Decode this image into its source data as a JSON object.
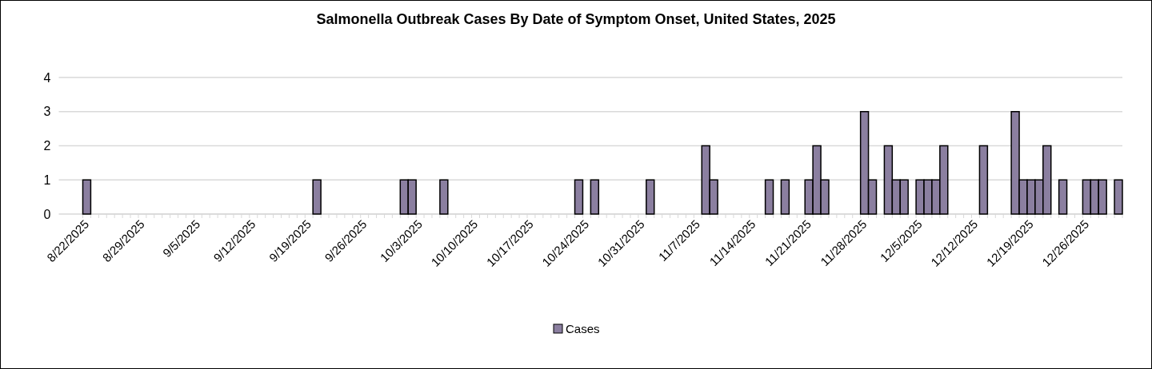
{
  "chart_data": {
    "type": "bar",
    "title": "Salmonella Outbreak Cases By Date of Symptom Onset, United States, 2025",
    "categories": [
      "8/22/2025",
      null,
      null,
      null,
      null,
      null,
      null,
      "8/29/2025",
      null,
      null,
      null,
      null,
      null,
      null,
      "9/5/2025",
      null,
      null,
      null,
      null,
      null,
      null,
      "9/12/2025",
      null,
      null,
      null,
      null,
      null,
      null,
      "9/19/2025",
      null,
      null,
      null,
      null,
      null,
      null,
      "9/26/2025",
      null,
      null,
      null,
      null,
      null,
      null,
      "10/3/2025",
      null,
      null,
      null,
      null,
      null,
      null,
      "10/10/2025",
      null,
      null,
      null,
      null,
      null,
      null,
      "10/17/2025",
      null,
      null,
      null,
      null,
      null,
      null,
      "10/24/2025",
      null,
      null,
      null,
      null,
      null,
      null,
      "10/31/2025",
      null,
      null,
      null,
      null,
      null,
      null,
      "11/7/2025",
      null,
      null,
      null,
      null,
      null,
      null,
      "11/14/2025",
      null,
      null,
      null,
      null,
      null,
      null,
      "11/21/2025",
      null,
      null,
      null,
      null,
      null,
      null,
      "11/28/2025",
      null,
      null,
      null,
      null,
      null,
      null,
      "12/5/2025",
      null,
      null,
      null,
      null,
      null,
      null,
      "12/12/2025",
      null,
      null,
      null,
      null,
      null,
      null,
      "12/19/2025",
      null,
      null,
      null,
      null,
      null,
      null,
      "12/26/2025",
      null,
      null,
      null,
      null
    ],
    "series": [
      {
        "name": "Cases",
        "color": "#8b7fa0",
        "values": [
          1,
          null,
          null,
          null,
          null,
          null,
          null,
          null,
          null,
          null,
          null,
          null,
          null,
          null,
          null,
          null,
          null,
          null,
          null,
          null,
          null,
          null,
          null,
          null,
          null,
          null,
          null,
          null,
          null,
          1,
          null,
          null,
          null,
          null,
          null,
          null,
          null,
          null,
          null,
          null,
          1,
          1,
          null,
          null,
          null,
          1,
          null,
          null,
          null,
          null,
          null,
          null,
          null,
          null,
          null,
          null,
          null,
          null,
          null,
          null,
          null,
          null,
          1,
          null,
          1,
          null,
          null,
          null,
          null,
          null,
          null,
          1,
          null,
          null,
          null,
          null,
          null,
          null,
          2,
          1,
          null,
          null,
          null,
          null,
          null,
          null,
          1,
          null,
          1,
          null,
          null,
          1,
          2,
          1,
          null,
          null,
          null,
          null,
          3,
          1,
          null,
          2,
          1,
          1,
          null,
          1,
          1,
          1,
          2,
          null,
          null,
          null,
          null,
          2,
          null,
          null,
          null,
          3,
          1,
          1,
          1,
          2,
          null,
          1,
          null,
          null,
          1,
          1,
          1,
          null,
          1
        ]
      }
    ],
    "ylim": [
      0,
      4
    ],
    "yticks": [
      0,
      1,
      2,
      3,
      4
    ],
    "grid": "y",
    "legend": "bottom"
  }
}
